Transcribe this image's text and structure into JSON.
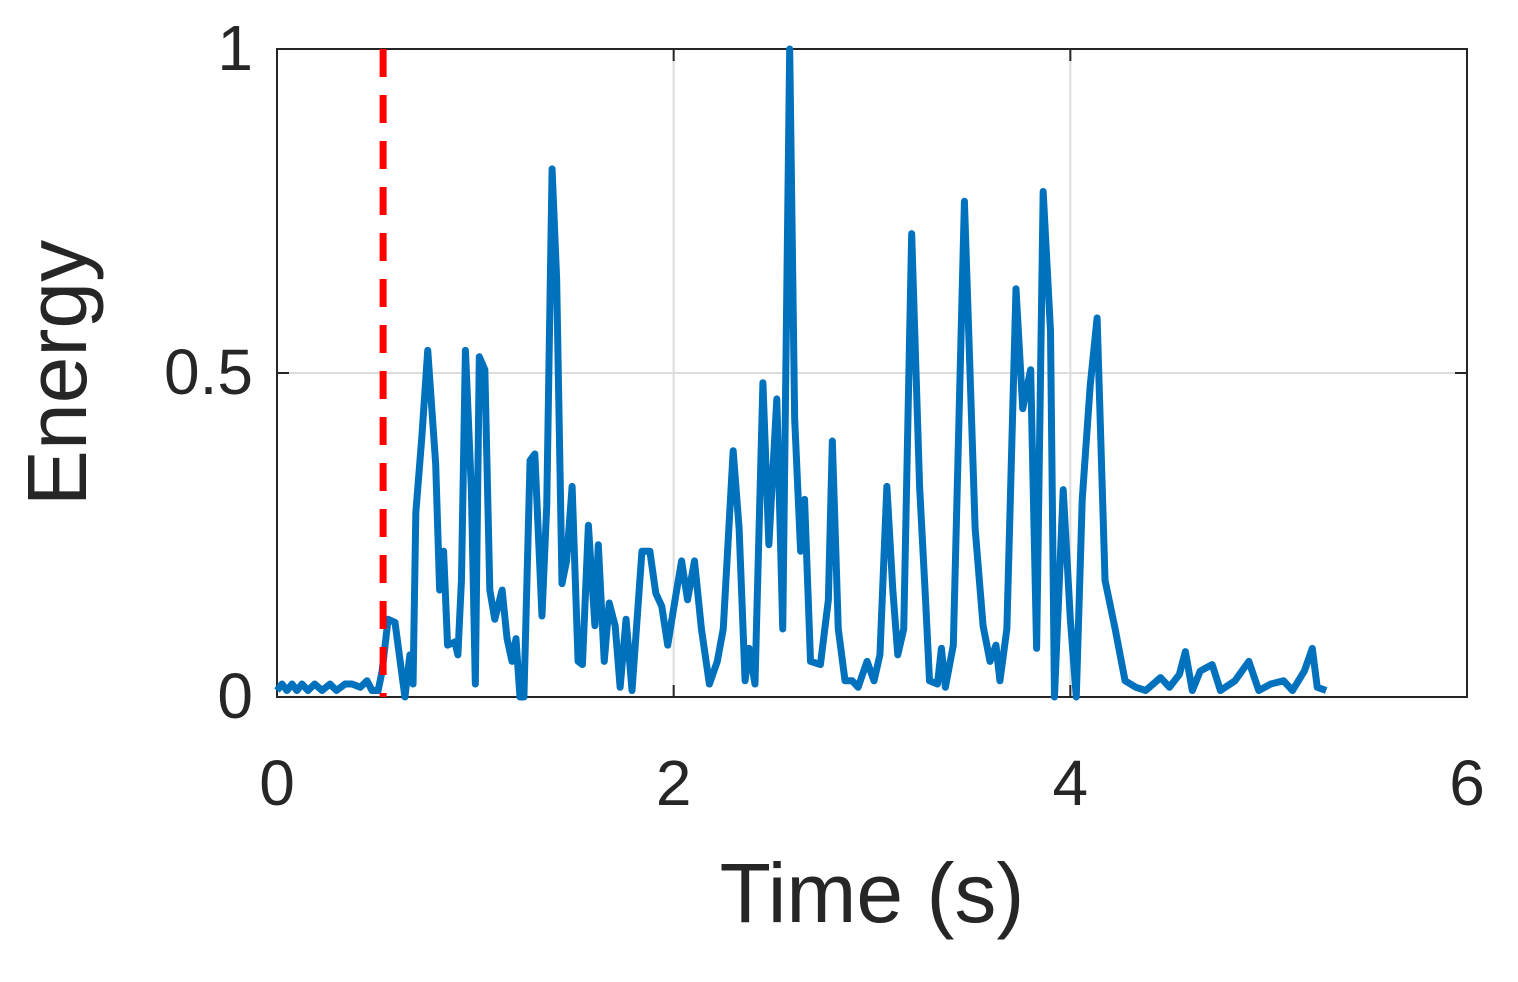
{
  "chart_data": {
    "type": "line",
    "xlabel": "Time (s)",
    "ylabel": "Energy",
    "xlim": [
      0,
      6
    ],
    "ylim": [
      0,
      1
    ],
    "xticks": [
      0,
      2,
      4,
      6
    ],
    "yticks": [
      0,
      0.5,
      1
    ],
    "grid": true,
    "vline": {
      "x": 0.535,
      "color": "#ff0000"
    },
    "series": [
      {
        "color": "#0072bd",
        "x": [
          0,
          0.025,
          0.05,
          0.076,
          0.1,
          0.126,
          0.156,
          0.19,
          0.227,
          0.267,
          0.3,
          0.343,
          0.378,
          0.42,
          0.454,
          0.479,
          0.51,
          0.53,
          0.56,
          0.595,
          0.645,
          0.67,
          0.686,
          0.7,
          0.73,
          0.76,
          0.8,
          0.82,
          0.84,
          0.86,
          0.897,
          0.912,
          0.93,
          0.95,
          0.98,
          1.0,
          1.02,
          1.048,
          1.073,
          1.098,
          1.135,
          1.16,
          1.185,
          1.205,
          1.225,
          1.245,
          1.276,
          1.3,
          1.336,
          1.36,
          1.387,
          1.41,
          1.437,
          1.46,
          1.488,
          1.518,
          1.54,
          1.57,
          1.603,
          1.62,
          1.65,
          1.675,
          1.705,
          1.73,
          1.76,
          1.79,
          1.84,
          1.88,
          1.91,
          1.94,
          1.97,
          2.007,
          2.04,
          2.07,
          2.105,
          2.14,
          2.18,
          2.22,
          2.25,
          2.3,
          2.33,
          2.36,
          2.38,
          2.41,
          2.45,
          2.48,
          2.52,
          2.55,
          2.585,
          2.61,
          2.64,
          2.66,
          2.69,
          2.74,
          2.78,
          2.8,
          2.83,
          2.864,
          2.9,
          2.93,
          2.975,
          3.01,
          3.04,
          3.075,
          3.105,
          3.13,
          3.16,
          3.2,
          3.24,
          3.27,
          3.29,
          3.33,
          3.35,
          3.37,
          3.41,
          3.466,
          3.52,
          3.56,
          3.595,
          3.625,
          3.645,
          3.68,
          3.726,
          3.76,
          3.8,
          3.83,
          3.863,
          3.9,
          3.92,
          3.964,
          4.0,
          4.03,
          4.06,
          4.1,
          4.135,
          4.175,
          4.226,
          4.276,
          4.33,
          4.38,
          4.455,
          4.5,
          4.55,
          4.58,
          4.615,
          4.655,
          4.715,
          4.757,
          4.83,
          4.9,
          4.95,
          5.01,
          5.075,
          5.12,
          5.18,
          5.22,
          5.245,
          5.29
        ],
        "values": [
          0.01,
          0.02,
          0.01,
          0.02,
          0.01,
          0.02,
          0.01,
          0.02,
          0.01,
          0.02,
          0.01,
          0.02,
          0.02,
          0.015,
          0.025,
          0.01,
          0.01,
          0.04,
          0.12,
          0.115,
          0.0,
          0.065,
          0.02,
          0.285,
          0.4,
          0.535,
          0.36,
          0.165,
          0.225,
          0.08,
          0.085,
          0.065,
          0.18,
          0.535,
          0.32,
          0.02,
          0.525,
          0.505,
          0.165,
          0.12,
          0.165,
          0.09,
          0.055,
          0.09,
          0.0,
          0.0,
          0.365,
          0.375,
          0.125,
          0.295,
          0.815,
          0.645,
          0.175,
          0.21,
          0.325,
          0.055,
          0.05,
          0.265,
          0.11,
          0.235,
          0.055,
          0.145,
          0.11,
          0.015,
          0.12,
          0.01,
          0.225,
          0.225,
          0.16,
          0.14,
          0.08,
          0.15,
          0.21,
          0.15,
          0.21,
          0.105,
          0.02,
          0.055,
          0.105,
          0.38,
          0.26,
          0.025,
          0.075,
          0.02,
          0.485,
          0.235,
          0.46,
          0.105,
          1.0,
          0.43,
          0.225,
          0.305,
          0.055,
          0.05,
          0.15,
          0.395,
          0.105,
          0.025,
          0.025,
          0.015,
          0.055,
          0.025,
          0.065,
          0.325,
          0.165,
          0.065,
          0.105,
          0.715,
          0.325,
          0.15,
          0.025,
          0.02,
          0.075,
          0.015,
          0.08,
          0.765,
          0.26,
          0.11,
          0.055,
          0.08,
          0.025,
          0.105,
          0.63,
          0.445,
          0.505,
          0.075,
          0.78,
          0.565,
          0.0,
          0.32,
          0.12,
          0.0,
          0.305,
          0.48,
          0.585,
          0.18,
          0.105,
          0.025,
          0.015,
          0.01,
          0.03,
          0.015,
          0.035,
          0.07,
          0.01,
          0.04,
          0.05,
          0.01,
          0.025,
          0.055,
          0.01,
          0.02,
          0.025,
          0.01,
          0.04,
          0.075,
          0.015,
          0.01
        ]
      }
    ]
  }
}
